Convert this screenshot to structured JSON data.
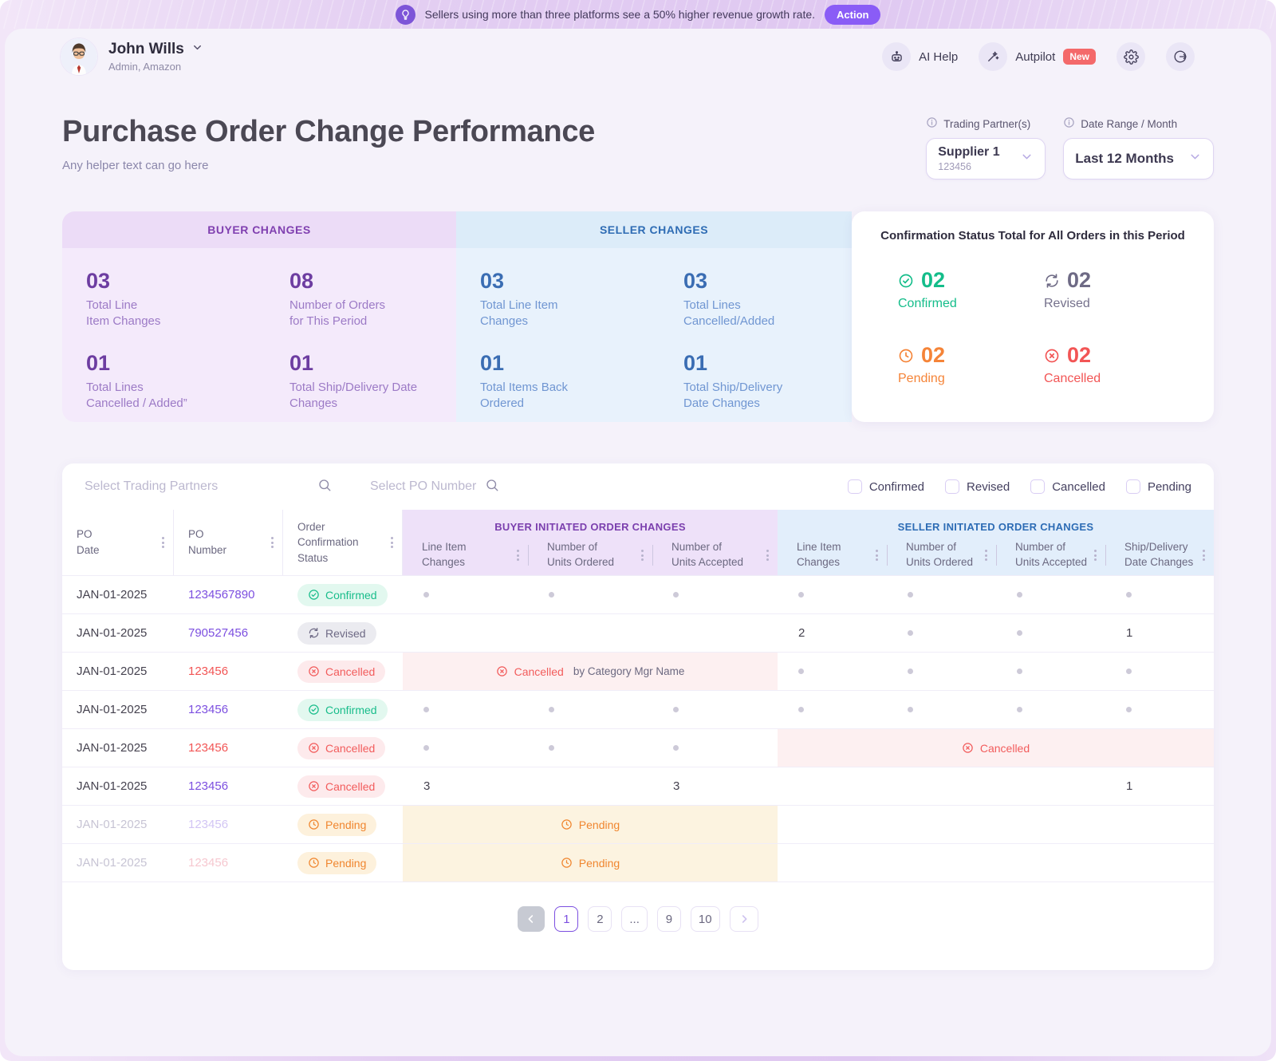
{
  "banner": {
    "message": "Sellers using more than three platforms see a 50% higher revenue growth rate.",
    "action_label": "Action"
  },
  "header": {
    "user": {
      "name": "John Wills",
      "role": "Admin, Amazon"
    },
    "ai_help_label": "AI Help",
    "autopilot_label": "Autpilot",
    "autopilot_badge": "New"
  },
  "page": {
    "title": "Purchase Order Change Performance",
    "subtitle": "Any helper text can go here"
  },
  "controls": {
    "trading_partner": {
      "label": "Trading Partner(s)",
      "value": "Supplier 1",
      "code": "123456"
    },
    "date_range": {
      "label": "Date Range / Month",
      "value": "Last 12 Months"
    }
  },
  "summary": {
    "buyer": {
      "title": "BUYER  CHANGES",
      "stats": [
        {
          "value": "03",
          "label": "Total Line\nItem Changes"
        },
        {
          "value": "08",
          "label": "Number of Orders\nfor This Period"
        },
        {
          "value": "01",
          "label": "Total Lines\nCancelled / Added”"
        },
        {
          "value": "01",
          "label": "Total Ship/Delivery Date\nChanges"
        }
      ]
    },
    "seller": {
      "title": "SELLER CHANGES",
      "stats": [
        {
          "value": "03",
          "label": "Total Line Item\nChanges"
        },
        {
          "value": "03",
          "label": "Total Lines\nCancelled/Added"
        },
        {
          "value": "01",
          "label": "Total Items Back\nOrdered"
        },
        {
          "value": "01",
          "label": "Total Ship/Delivery\nDate Changes"
        }
      ]
    },
    "confirmation": {
      "title": "Confirmation Status Total for All Orders in this Period",
      "stats": [
        {
          "value": "02",
          "label": "Confirmed",
          "icon": "check",
          "color": "#14bd8a",
          "label_color": "#14bd8a"
        },
        {
          "value": "02",
          "label": "Revised",
          "icon": "refresh",
          "color": "#6e6a85",
          "label_color": "#75718c"
        },
        {
          "value": "02",
          "label": "Pending",
          "icon": "clock",
          "color": "#f58438",
          "label_color": "#f58438"
        },
        {
          "value": "02",
          "label": "Cancelled",
          "icon": "xcircle",
          "color": "#f25555",
          "label_color": "#f25555"
        }
      ]
    }
  },
  "table": {
    "partner_search_placeholder": "Select Trading Partners",
    "po_search_placeholder": "Select PO Number",
    "status_filters": [
      "Confirmed",
      "Revised",
      "Cancelled",
      "Pending"
    ],
    "buyer_group_label": "BUYER INITIATED ORDER CHANGES",
    "seller_group_label": "SELLER INITIATED ORDER CHANGES",
    "fixed_columns": [
      "PO\nDate",
      "PO\nNumber",
      "Order Confirmation\nStatus"
    ],
    "buyer_columns": [
      "Line Item\nChanges",
      "Number of\nUnits Ordered",
      "Number of\nUnits Accepted"
    ],
    "seller_columns": [
      "Line Item\nChanges",
      "Number of\nUnits Ordered",
      "Number of\nUnits Accepted",
      "Ship/Delivery\nDate Changes"
    ],
    "rows": [
      {
        "date": "JAN-01-2025",
        "po": "1234567890",
        "po_color": "purple",
        "faded": false,
        "status": "Confirmed",
        "buyer": [
          "dot",
          "dot",
          "dot"
        ],
        "seller": [
          "dot",
          "dot",
          "dot",
          "dot"
        ]
      },
      {
        "date": "JAN-01-2025",
        "po": "790527456",
        "po_color": "purple",
        "faded": false,
        "status": "Revised",
        "buyer": [
          "",
          "",
          ""
        ],
        "seller": [
          "2",
          "dot",
          "dot",
          "1"
        ]
      },
      {
        "date": "JAN-01-2025",
        "po": "123456",
        "po_color": "red",
        "faded": false,
        "status": "Cancelled",
        "buyer_span": {
          "status": "Cancelled",
          "suffix": "by Category Mgr Name"
        },
        "seller": [
          "dot",
          "dot",
          "dot",
          "dot"
        ]
      },
      {
        "date": "JAN-01-2025",
        "po": "123456",
        "po_color": "purple",
        "faded": false,
        "status": "Confirmed",
        "buyer": [
          "dot",
          "dot",
          "dot"
        ],
        "seller": [
          "dot",
          "dot",
          "dot",
          "dot"
        ]
      },
      {
        "date": "JAN-01-2025",
        "po": "123456",
        "po_color": "red",
        "faded": false,
        "status": "Cancelled",
        "buyer": [
          "dot",
          "dot",
          "dot"
        ],
        "seller_span": {
          "status": "Cancelled",
          "suffix": ""
        }
      },
      {
        "date": "JAN-01-2025",
        "po": "123456",
        "po_color": "purple",
        "faded": false,
        "status": "Cancelled",
        "buyer": [
          "3",
          "",
          "3"
        ],
        "seller": [
          "",
          "",
          "",
          "1"
        ]
      },
      {
        "date": "JAN-01-2025",
        "po": "123456",
        "po_color": "faded-purple",
        "faded": true,
        "status": "Pending",
        "buyer_span": {
          "status": "Pending",
          "suffix": ""
        },
        "seller": [
          "",
          "",
          "",
          ""
        ]
      },
      {
        "date": "JAN-01-2025",
        "po": "123456",
        "po_color": "faded-red",
        "faded": true,
        "status": "Pending",
        "buyer_span": {
          "status": "Pending",
          "suffix": ""
        },
        "seller": [
          "",
          "",
          "",
          ""
        ]
      }
    ]
  },
  "pagination": {
    "pages": [
      "1",
      "2",
      "...",
      "9",
      "10"
    ],
    "active_page": "1"
  }
}
